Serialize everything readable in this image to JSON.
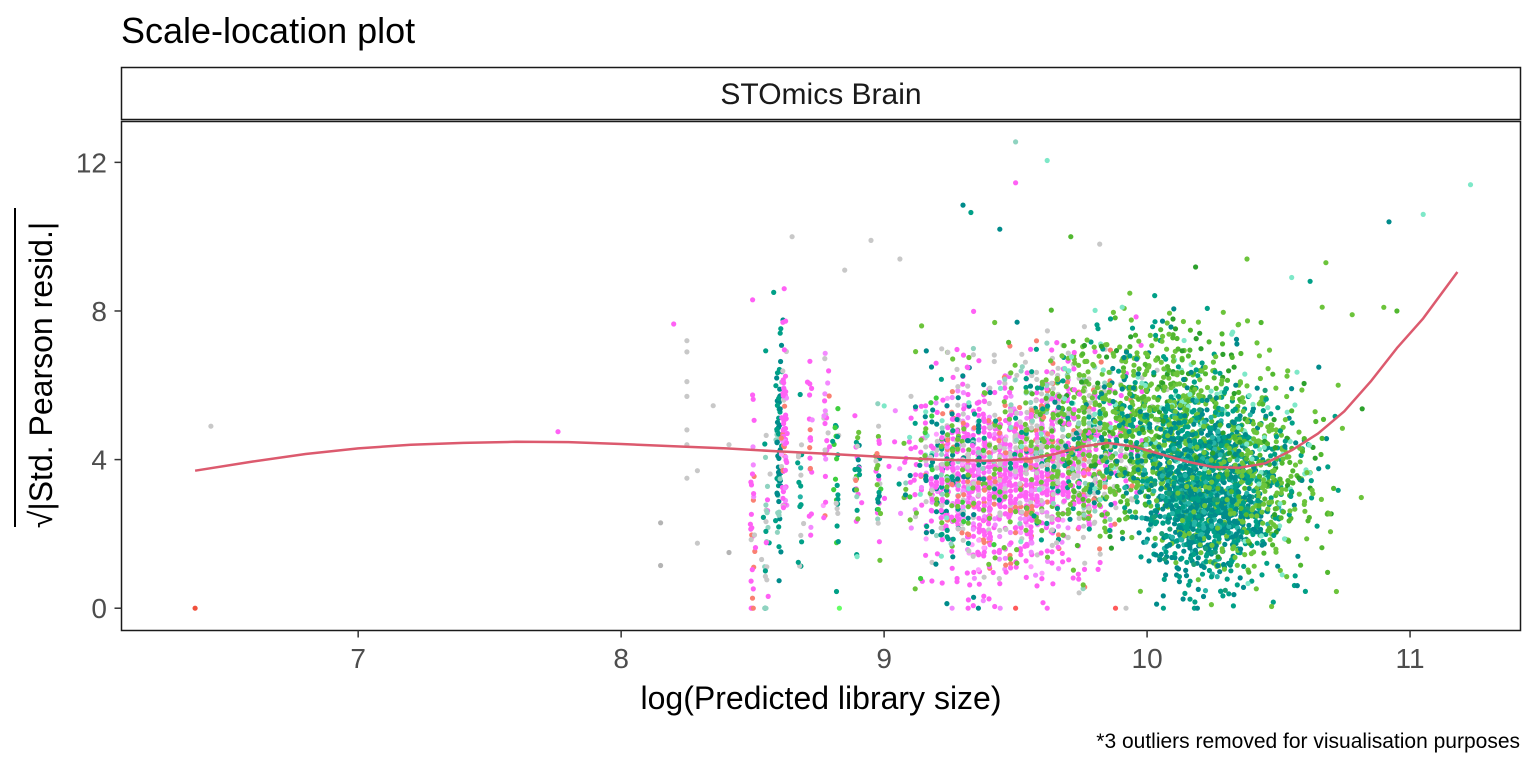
{
  "chart_data": {
    "type": "scatter",
    "title": "Scale-location plot",
    "facet_label": "STOmics Brain",
    "xlabel": "log(Predicted library size)",
    "ylabel": "|Std. Pearson resid.|",
    "ylabel_prefix": "√",
    "caption": "*3 outliers removed for visualisation purposes",
    "xlim": [
      6.1,
      11.42
    ],
    "ylim": [
      -0.6,
      13.1
    ],
    "x_ticks": [
      7,
      8,
      9,
      10,
      11
    ],
    "y_ticks": [
      0,
      4,
      8,
      12
    ],
    "grid": false,
    "legend": "none",
    "palette": [
      "#ff61f5",
      "#f38aff",
      "#00a087",
      "#008b8b",
      "#1b9e77",
      "#6cc43b",
      "#52b830",
      "#2ca02c",
      "#c8c8c8",
      "#b4b4b4",
      "#8fd3c0",
      "#7ee8c8",
      "#fa8072",
      "#ff5a5a",
      "#3ecf3e",
      "#66ff66",
      "#26b4a6",
      "#ffa0ff"
    ],
    "series": [
      {
        "name": "loess",
        "type": "line",
        "color": "#dc5a6e",
        "x": [
          6.38,
          6.6,
          6.8,
          7.0,
          7.2,
          7.4,
          7.6,
          7.8,
          8.0,
          8.2,
          8.4,
          8.6,
          8.8,
          9.0,
          9.2,
          9.4,
          9.55,
          9.65,
          9.75,
          9.85,
          9.95,
          10.05,
          10.15,
          10.25,
          10.35,
          10.45,
          10.55,
          10.65,
          10.75,
          10.85,
          10.95,
          11.05,
          11.18
        ],
        "y": [
          3.7,
          3.95,
          4.15,
          4.3,
          4.4,
          4.45,
          4.48,
          4.47,
          4.42,
          4.36,
          4.3,
          4.22,
          4.15,
          4.07,
          4.0,
          3.97,
          4.02,
          4.15,
          4.35,
          4.45,
          4.35,
          4.15,
          3.95,
          3.8,
          3.78,
          3.9,
          4.25,
          4.7,
          5.3,
          6.1,
          7.0,
          7.8,
          9.05
        ]
      },
      {
        "name": "points",
        "type": "scatter",
        "points": [
          [
            6.38,
            0.0,
            "#f0503c"
          ],
          [
            6.44,
            4.9,
            "#c8c8c8"
          ],
          [
            7.76,
            4.75,
            "#ff61f5"
          ],
          [
            8.2,
            7.65,
            "#ff61f5"
          ],
          [
            8.25,
            7.2,
            "#c8c8c8"
          ],
          [
            8.25,
            6.9,
            "#c8c8c8"
          ],
          [
            8.25,
            6.1,
            "#c8c8c8"
          ],
          [
            8.25,
            5.7,
            "#c8c8c8"
          ],
          [
            8.25,
            4.8,
            "#c8c8c8"
          ],
          [
            8.25,
            4.4,
            "#c8c8c8"
          ],
          [
            8.25,
            3.5,
            "#c8c8c8"
          ],
          [
            8.15,
            2.3,
            "#b4b4b4"
          ],
          [
            8.15,
            1.15,
            "#b4b4b4"
          ],
          [
            8.29,
            3.7,
            "#c8c8c8"
          ],
          [
            8.29,
            1.75,
            "#c8c8c8"
          ],
          [
            8.35,
            5.45,
            "#c8c8c8"
          ],
          [
            8.41,
            4.4,
            "#c8c8c8"
          ],
          [
            8.41,
            1.5,
            "#b4b4b4"
          ],
          [
            8.65,
            10.0,
            "#c8c8c8"
          ],
          [
            8.83,
            0.0,
            "#66ff66"
          ],
          [
            8.85,
            9.1,
            "#c8c8c8"
          ],
          [
            8.95,
            9.9,
            "#c8c8c8"
          ],
          [
            9.06,
            9.4,
            "#c8c8c8"
          ],
          [
            9.5,
            12.55,
            "#8fd3c0"
          ],
          [
            9.62,
            12.05,
            "#7ee8c8"
          ],
          [
            9.5,
            11.45,
            "#ff61f5"
          ],
          [
            9.3,
            10.85,
            "#008b8b"
          ],
          [
            9.33,
            10.65,
            "#00a087"
          ],
          [
            9.44,
            10.2,
            "#008b8b"
          ],
          [
            9.88,
            0.0,
            "#ff5a5a"
          ],
          [
            9.92,
            0.0,
            "#c8c8c8"
          ],
          [
            9.5,
            0.0,
            "#ff5a5a"
          ],
          [
            10.92,
            10.4,
            "#008b8b"
          ],
          [
            11.05,
            10.6,
            "#7ee8c8"
          ],
          [
            11.23,
            11.4,
            "#7ee8c8"
          ],
          [
            10.9,
            8.1,
            "#6cc43b"
          ],
          [
            10.95,
            8.0,
            "#52b830"
          ],
          [
            10.72,
            0.45,
            "#6cc43b"
          ],
          [
            10.38,
            9.4,
            "#6cc43b"
          ],
          [
            10.55,
            8.9,
            "#7ee8c8"
          ],
          [
            10.62,
            8.8,
            "#00a087"
          ],
          [
            10.68,
            9.3,
            "#6cc43b"
          ],
          [
            10.78,
            7.9,
            "#6cc43b"
          ],
          [
            8.5,
            8.3,
            "#ff61f5"
          ],
          [
            8.62,
            8.6,
            "#ff61f5"
          ],
          [
            8.58,
            8.5,
            "#00a087"
          ],
          [
            9.71,
            10.0,
            "#52b830"
          ],
          [
            9.82,
            9.8,
            "#c8c8c8"
          ]
        ]
      }
    ]
  }
}
